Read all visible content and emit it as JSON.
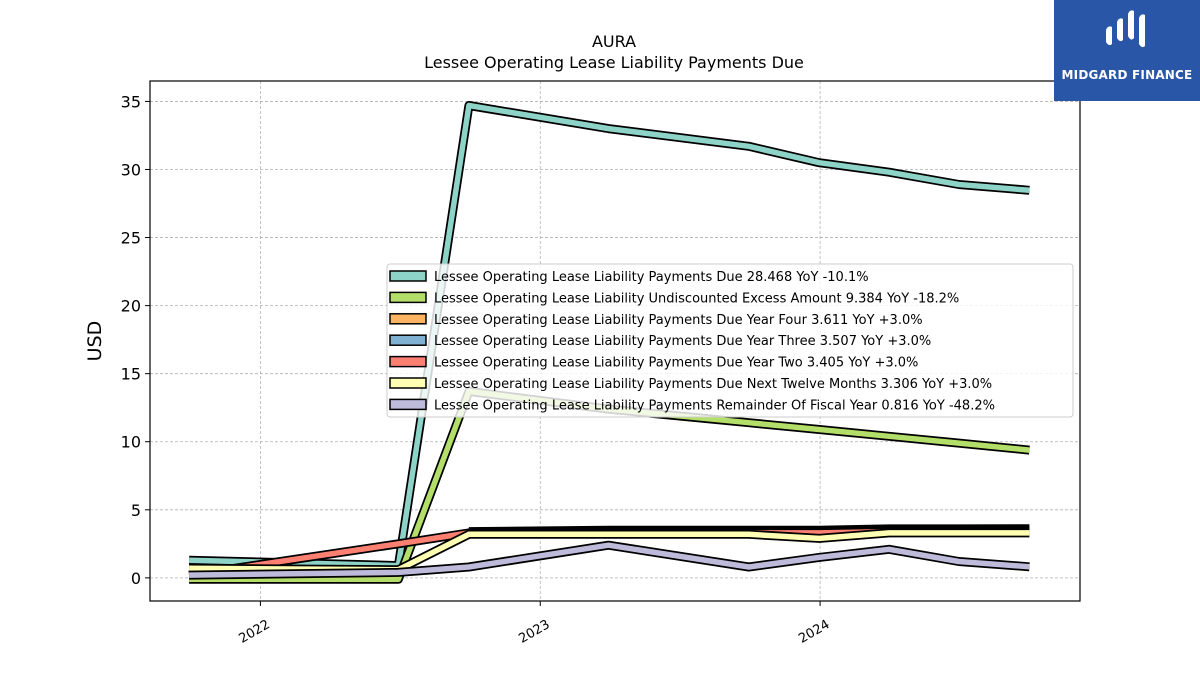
{
  "logo": {
    "text": "MIDGARD FINANCE",
    "bg_color": "#2a56a8"
  },
  "chart_data": {
    "type": "line",
    "title": "AURA",
    "subtitle": "Lessee Operating Lease Liability Payments Due",
    "xlabel": "",
    "ylabel": "USD",
    "xlim": [
      "2021-08-10",
      "2024-12-05"
    ],
    "ylim": [
      -1.7,
      36.5
    ],
    "yticks": [
      0,
      5,
      10,
      15,
      20,
      25,
      30,
      35
    ],
    "xticks": [
      "2022",
      "2023",
      "2024"
    ],
    "grid": true,
    "legend_position": "center-right",
    "x": [
      "2021-09-30",
      "2022-06-30",
      "2022-09-30",
      "2023-03-31",
      "2023-09-30",
      "2023-12-31",
      "2024-03-31",
      "2024-06-30",
      "2024-09-30"
    ],
    "series": [
      {
        "name": "Lessee Operating Lease Liability Payments Due",
        "legend": "Lessee Operating Lease Liability Payments Due  28.468 YoY -10.1%",
        "color": "#8dd3c7",
        "values": [
          1.3,
          0.9,
          34.7,
          33.0,
          31.7,
          30.5,
          29.8,
          28.9,
          28.468
        ]
      },
      {
        "name": "Lessee Operating Lease Liability Undiscounted Excess Amount",
        "legend": "Lessee Operating Lease Liability Undiscounted Excess Amount  9.384 YoY -18.2%",
        "color": "#b3de69",
        "values": [
          -0.1,
          -0.1,
          13.7,
          12.4,
          11.4,
          10.9,
          10.4,
          9.9,
          9.384
        ]
      },
      {
        "name": "Lessee Operating Lease Liability Payments Due Year Four",
        "legend": "Lessee Operating Lease Liability Payments Due Year Four  3.611 YoY +3.0%",
        "color": "#fdb462",
        "values": [
          null,
          null,
          3.4,
          3.5,
          3.5,
          3.5,
          3.6,
          3.6,
          3.611
        ]
      },
      {
        "name": "Lessee Operating Lease Liability Payments Due Year Three",
        "legend": "Lessee Operating Lease Liability Payments Due Year Three  3.507 YoY +3.0%",
        "color": "#80b1d3",
        "values": [
          null,
          null,
          3.3,
          3.4,
          3.4,
          3.4,
          3.5,
          3.5,
          3.507
        ]
      },
      {
        "name": "Lessee Operating Lease Liability Payments Due Year Two",
        "legend": "Lessee Operating Lease Liability Payments Due Year Two  3.405 YoY +3.0%",
        "color": "#fb8072",
        "values": [
          0.2,
          2.5,
          3.3,
          3.3,
          3.3,
          3.3,
          3.4,
          3.4,
          3.405
        ]
      },
      {
        "name": "Lessee Operating Lease Liability Payments Due Next Twelve Months",
        "legend": "Lessee Operating Lease Liability Payments Due Next Twelve Months  3.306 YoY +3.0%",
        "color": "#ffffb3",
        "values": [
          0.7,
          0.6,
          3.2,
          3.2,
          3.2,
          2.9,
          3.3,
          3.3,
          3.306
        ]
      },
      {
        "name": "Lessee Operating Lease Liability Payments Remainder Of Fiscal Year",
        "legend": "Lessee Operating Lease Liability Payments Remainder Of Fiscal Year  0.816 YoY -48.2%",
        "color": "#bebada",
        "values": [
          0.2,
          0.4,
          0.8,
          2.4,
          0.8,
          1.5,
          2.1,
          1.2,
          0.816
        ]
      }
    ]
  }
}
